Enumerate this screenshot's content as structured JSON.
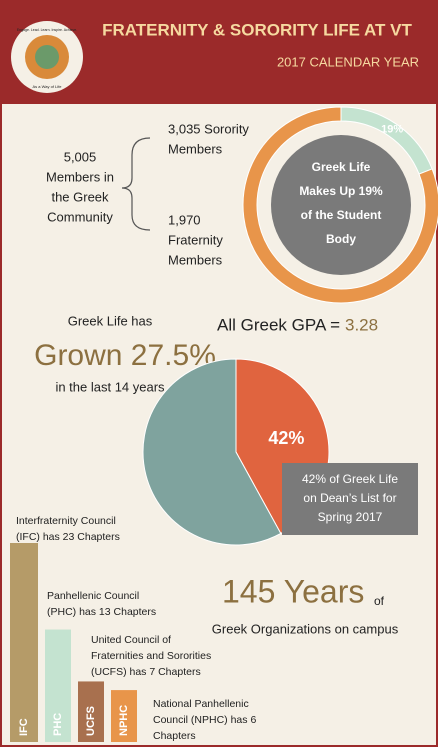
{
  "header": {
    "title": "FRATERNITY & SORORITY LIFE AT VT",
    "subtitle": "2017 CALENDAR YEAR",
    "logo_top": "Engage. Lead. Learn. Inspire. Achieve.",
    "logo_bottom": "As a Way of Life"
  },
  "membership": {
    "total": [
      "5,005",
      "Members in",
      "the Greek",
      "Community"
    ],
    "sorority": [
      "3,035 Sorority",
      "Members"
    ],
    "fraternity": [
      "1,970",
      "Fraternity",
      "Members"
    ]
  },
  "donut": {
    "type": "pie",
    "values": [
      19,
      81
    ],
    "value_labels": [
      "19%",
      null
    ],
    "colors": [
      "#c4e3d0",
      "#e8954a"
    ],
    "center_text": [
      "Greek Life",
      "Makes Up 19%",
      "of the Student",
      "Body"
    ]
  },
  "growth": {
    "lead": "Greek Life has",
    "headline": "Grown 27.5%",
    "tail": "in the last 14 years"
  },
  "gpa": {
    "label": "All Greek GPA =",
    "value": "3.28"
  },
  "deans_list": {
    "type": "pie",
    "values": [
      42,
      58
    ],
    "value_labels": [
      "42%",
      null
    ],
    "colors": [
      "#e0643f",
      "#7fa39e"
    ],
    "callout": [
      "42% of Greek Life",
      "on Dean’s List for",
      "Spring 2017"
    ]
  },
  "history": {
    "headline": "145 Years",
    "of": "of",
    "tail": "Greek Organizations on campus"
  },
  "councils": {
    "type": "bar",
    "categories": [
      "IFC",
      "PHC",
      "UCFS",
      "NPHC"
    ],
    "values": [
      23,
      13,
      7,
      6
    ],
    "colors": [
      "#b59b68",
      "#c4e3d0",
      "#a8704e",
      "#e8954a"
    ],
    "descriptions": [
      [
        "Interfraternity Council",
        "(IFC) has 23 Chapters"
      ],
      [
        "Panhellenic Council",
        "(PHC) has 13 Chapters"
      ],
      [
        "United Council of",
        "Fraternities and Sororities",
        "(UCFS) has 7 Chapters"
      ],
      [
        "National Panhellenic",
        "Council (NPHC) has 6",
        "Chapters"
      ]
    ]
  }
}
